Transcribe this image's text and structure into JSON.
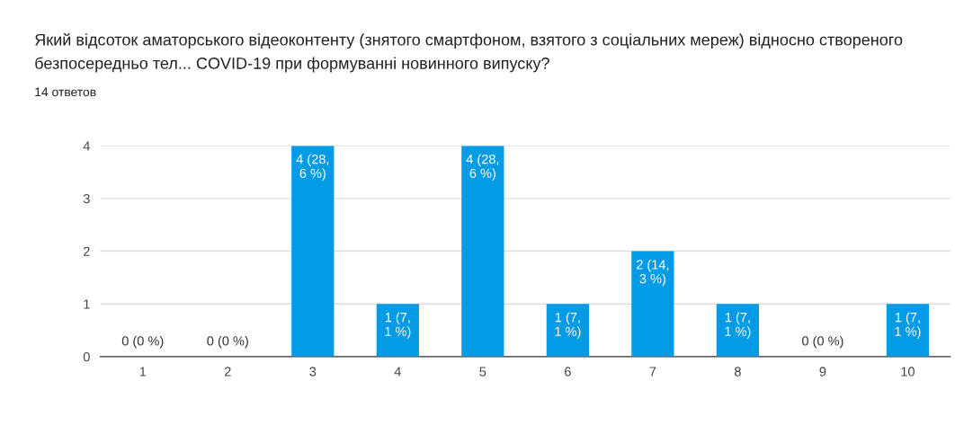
{
  "chart_data": {
    "type": "bar",
    "title": "Який відсоток аматорського відеоконтенту (знятого смартфоном, взятого з соціальних мереж) відносно створеного безпосередньо тел... COVID-19 при формуванні новинного випуску?",
    "subtitle": "14 ответов",
    "categories": [
      "1",
      "2",
      "3",
      "4",
      "5",
      "6",
      "7",
      "8",
      "9",
      "10"
    ],
    "values": [
      0,
      0,
      4,
      1,
      4,
      1,
      2,
      1,
      0,
      1
    ],
    "value_labels": [
      "0 (0 %)",
      "0 (0 %)",
      "4 (28,\n6 %)",
      "1 (7,\n1 %)",
      "4 (28,\n6 %)",
      "1 (7,\n1 %)",
      "2 (14,\n3 %)",
      "1 (7,\n1 %)",
      "0 (0 %)",
      "1 (7,\n1 %)"
    ],
    "color": "#039be5",
    "ylim": [
      0,
      4
    ],
    "yticks": [
      0,
      1,
      2,
      3,
      4
    ],
    "grid": "y",
    "legend": false
  }
}
